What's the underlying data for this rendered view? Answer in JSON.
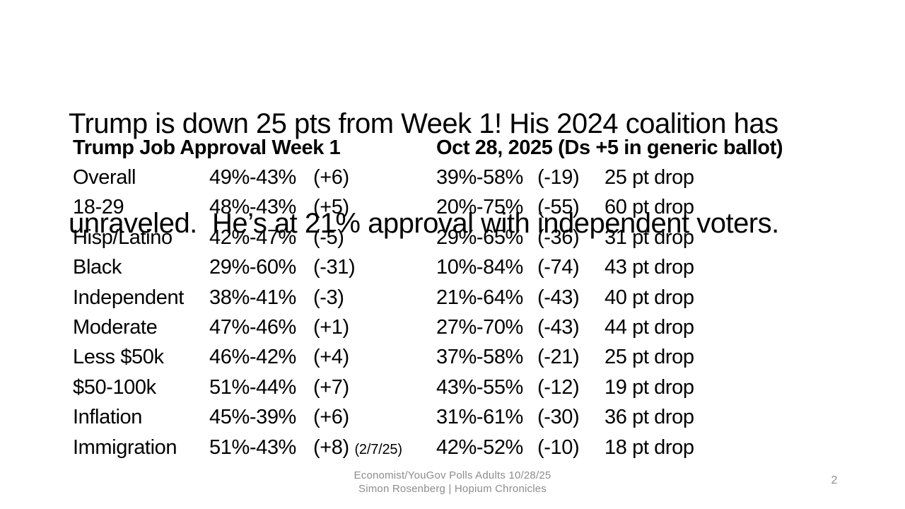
{
  "title": {
    "line1": "Trump is down 25 pts from Week 1! His 2024 coalition has",
    "line2": "unraveled.  He’s at 21% approval with independent voters."
  },
  "table": {
    "header_left": "Trump Job Approval Week 1",
    "header_right": "Oct 28, 2025 (Ds +5 in generic ballot)",
    "rows": [
      {
        "label": "Overall",
        "week1": "49%-43%",
        "week1_margin": "(+6)",
        "oct28": "39%-58%",
        "oct28_margin": "(-19)",
        "drop": "25 pt drop"
      },
      {
        "label": "18-29",
        "week1": "48%-43%",
        "week1_margin": "(+5)",
        "oct28": "20%-75%",
        "oct28_margin": "(-55)",
        "drop": "60 pt drop"
      },
      {
        "label": "Hisp/Latino",
        "week1": "42%-47%",
        "week1_margin": "(-5)",
        "oct28": "29%-65%",
        "oct28_margin": "(-36)",
        "drop": "31 pt drop"
      },
      {
        "label": "Black",
        "week1": "29%-60%",
        "week1_margin": "(-31)",
        "oct28": "10%-84%",
        "oct28_margin": "(-74)",
        "drop": "43 pt drop"
      },
      {
        "label": "Independent",
        "week1": "38%-41%",
        "week1_margin": "(-3)",
        "oct28": "21%-64%",
        "oct28_margin": "(-43)",
        "drop": "40 pt drop"
      },
      {
        "label": "Moderate",
        "week1": "47%-46%",
        "week1_margin": "(+1)",
        "oct28": "27%-70%",
        "oct28_margin": "(-43)",
        "drop": "44 pt drop"
      },
      {
        "label": "Less $50k",
        "week1": "46%-42%",
        "week1_margin": "(+4)",
        "oct28": "37%-58%",
        "oct28_margin": "(-21)",
        "drop": "25 pt drop"
      },
      {
        "label": "$50-100k",
        "week1": "51%-44%",
        "week1_margin": "(+7)",
        "oct28": "43%-55%",
        "oct28_margin": "(-12)",
        "drop": "19 pt drop"
      },
      {
        "label": "Inflation",
        "week1": "45%-39%",
        "week1_margin": "(+6)",
        "oct28": "31%-61%",
        "oct28_margin": "(-30)",
        "drop": "36 pt drop"
      },
      {
        "label": "Immigration",
        "week1": "51%-43%",
        "week1_margin": "(+8)",
        "week1_note": "(2/7/25)",
        "oct28": "42%-52%",
        "oct28_margin": "(-10)",
        "drop": "18 pt drop"
      }
    ]
  },
  "footer": {
    "line1": "Economist/YouGov Polls Adults 10/28/25",
    "line2": "Simon Rosenberg | Hopium Chronicles",
    "page_number": "2"
  },
  "colors": {
    "text": "#000000",
    "muted": "#8c8c8c",
    "background": "#ffffff"
  }
}
